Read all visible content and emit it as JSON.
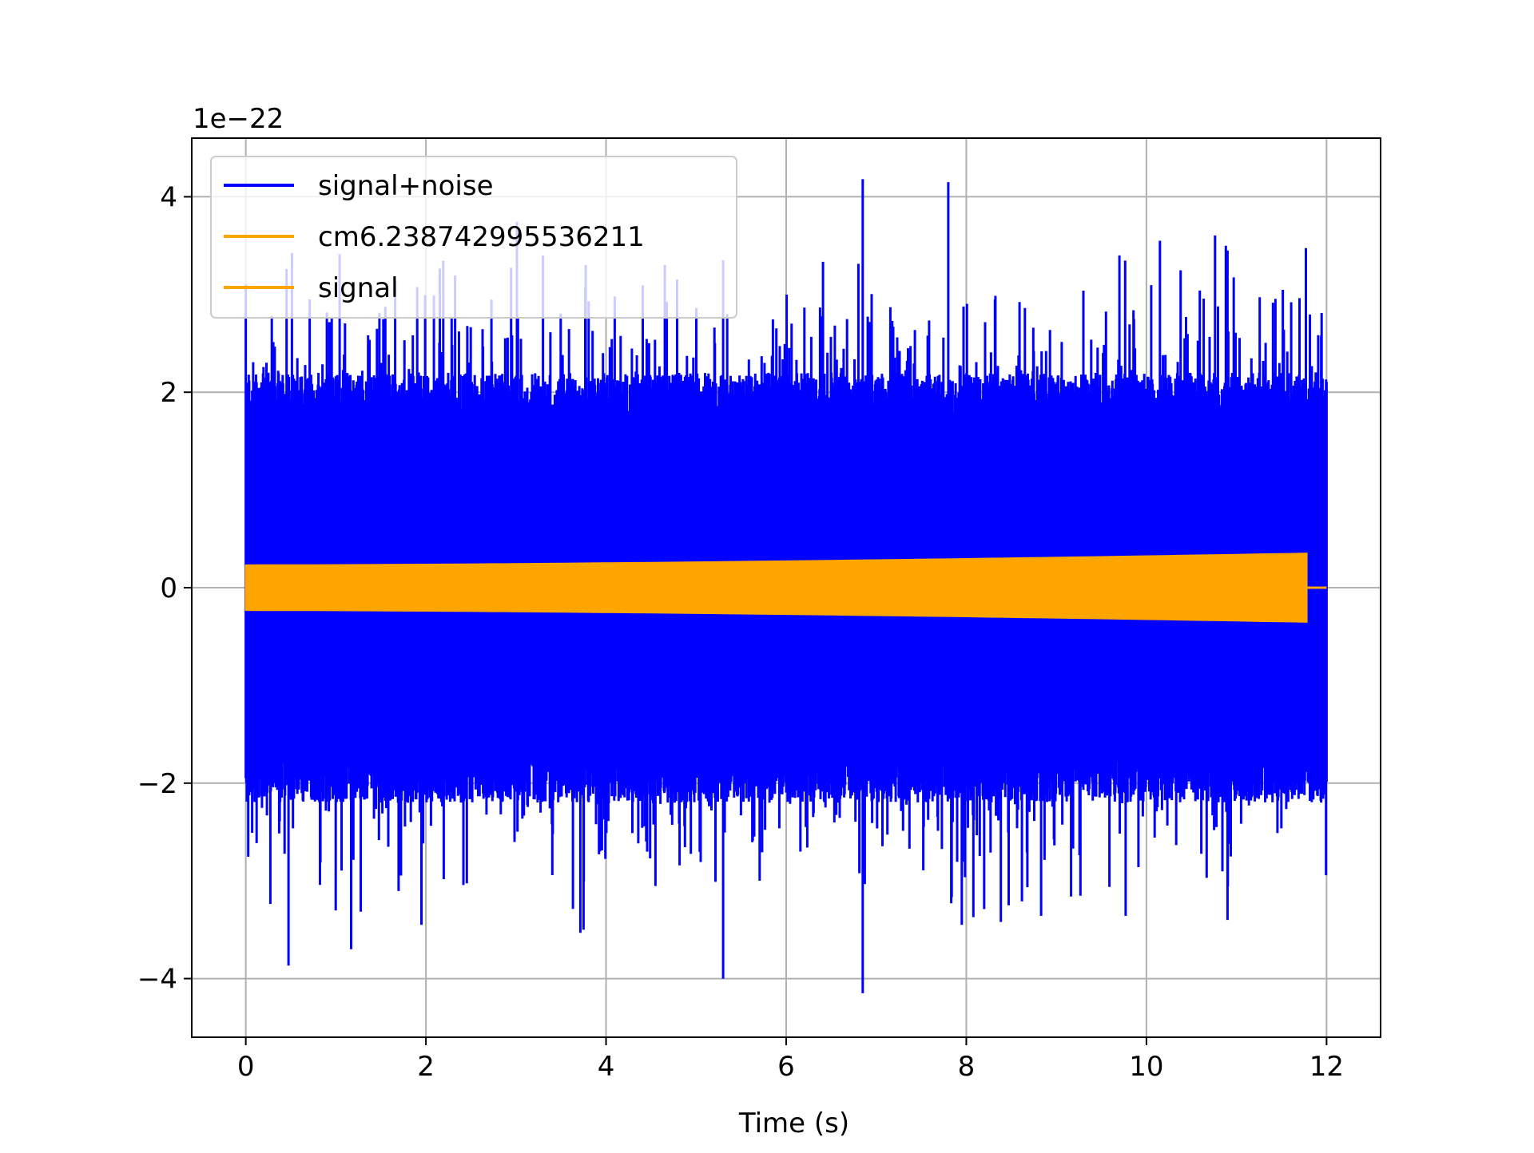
{
  "chart_data": {
    "type": "line",
    "title": "",
    "xlabel": "Time (s)",
    "ylabel": "",
    "offset_text": "1e−22",
    "xlim": [
      -0.6,
      12.6
    ],
    "ylim": [
      -4.6,
      4.6
    ],
    "x_ticks": [
      0,
      2,
      4,
      6,
      8,
      10,
      12
    ],
    "x_tick_labels": [
      "0",
      "2",
      "4",
      "6",
      "8",
      "10",
      "12"
    ],
    "y_ticks": [
      -4,
      -2,
      0,
      2,
      4
    ],
    "y_tick_labels": [
      "−4",
      "−2",
      "0",
      "2",
      "4"
    ],
    "grid": true,
    "legend_position": "top-left",
    "series": [
      {
        "name": "signal+noise",
        "color": "#0000ff",
        "x_range": [
          0,
          12
        ],
        "typical_envelope": [
          -2.0,
          2.0
        ],
        "notable_peaks": [
          {
            "x": 6.85,
            "y": 4.18
          },
          {
            "x": 7.8,
            "y": 4.15
          },
          {
            "x": 10.15,
            "y": 3.55
          },
          {
            "x": 10.9,
            "y": 3.45
          },
          {
            "x": 9.7,
            "y": 3.4
          },
          {
            "x": 5.3,
            "y": 3.35
          },
          {
            "x": 3.3,
            "y": 3.4
          },
          {
            "x": 0.0,
            "y": 3.1
          },
          {
            "x": 6.85,
            "y": -4.15
          },
          {
            "x": 5.3,
            "y": -4.0
          },
          {
            "x": 1.17,
            "y": -3.7
          },
          {
            "x": 3.75,
            "y": -3.5
          },
          {
            "x": 1.95,
            "y": -3.45
          },
          {
            "x": 10.9,
            "y": -3.4
          },
          {
            "x": 7.95,
            "y": -3.45
          }
        ]
      },
      {
        "name": "cm6.238742995536211",
        "color": "#ffa500",
        "x_range": [
          0,
          12
        ],
        "values": "overlaps signal"
      },
      {
        "name": "signal",
        "color": "#ffa500",
        "x_range": [
          0,
          12
        ],
        "amplitude_start": 0.23,
        "amplitude_end": 0.35,
        "signal_end_x": 11.78,
        "after_end": 0
      }
    ]
  }
}
